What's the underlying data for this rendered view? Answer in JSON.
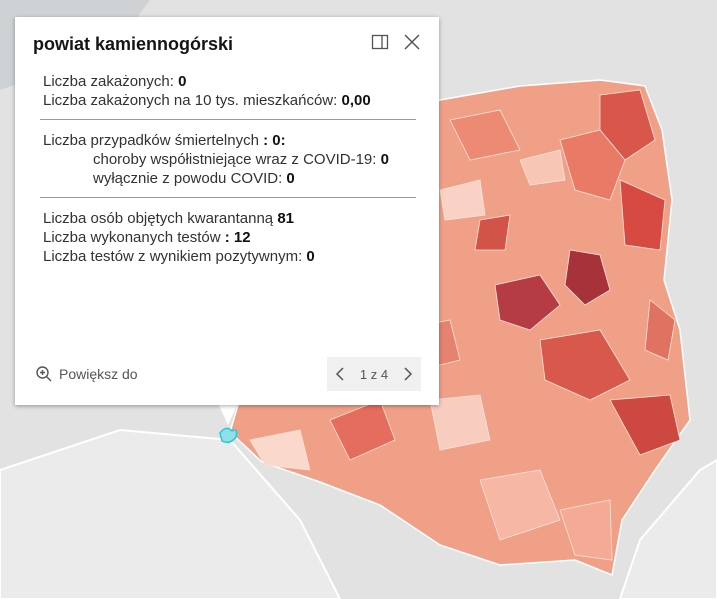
{
  "popup": {
    "title": "powiat kamiennogórski",
    "section1": [
      {
        "label": "Liczba zakażonych:",
        "value": 0
      },
      {
        "label": "Liczba zakażonych na 10 tys. mieszkańców:",
        "value": "0,00"
      }
    ],
    "section2": [
      {
        "label": "Liczba przypadków śmiertelnych",
        "value": ": 0:"
      },
      {
        "label": "choroby współistniejące wraz z COVID-19:",
        "value": 0
      },
      {
        "label": "wyłącznie z powodu COVID:",
        "value": 0
      }
    ],
    "section3": [
      {
        "label": "Liczba osób objętych kwarantanną",
        "value": 81
      },
      {
        "label": "Liczba wykonanych testów",
        "value": ": 12"
      },
      {
        "label": "Liczba testów z wynikiem pozytywnym:",
        "value": 0
      }
    ],
    "zoom": "Powiększ do",
    "pager": "1 z 4"
  }
}
